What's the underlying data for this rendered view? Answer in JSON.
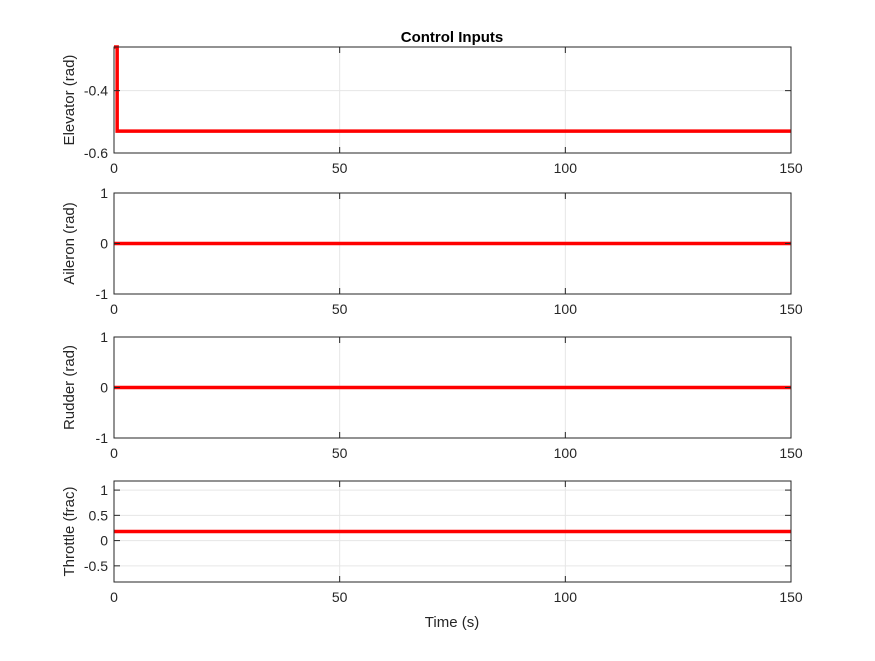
{
  "figure": {
    "title": "Control Inputs",
    "xlabel": "Time (s)"
  },
  "chart_data": [
    {
      "type": "line",
      "ylabel": "Elevator (rad)",
      "xlim": [
        0,
        150
      ],
      "ylim": [
        -0.6,
        -0.26
      ],
      "xticks": [
        0,
        50,
        100,
        150
      ],
      "yticks": [
        -0.6,
        -0.4
      ],
      "ytick_labels": [
        "-0.6",
        "-0.4"
      ],
      "grid": true,
      "series": [
        {
          "color": "#ff0000",
          "x": [
            0,
            0.7,
            0.7,
            150
          ],
          "y": [
            -0.26,
            -0.26,
            -0.53,
            -0.53
          ]
        }
      ]
    },
    {
      "type": "line",
      "ylabel": "Aileron (rad)",
      "xlim": [
        0,
        150
      ],
      "ylim": [
        -1,
        1
      ],
      "xticks": [
        0,
        50,
        100,
        150
      ],
      "yticks": [
        -1,
        0,
        1
      ],
      "ytick_labels": [
        "-1",
        "0",
        "1"
      ],
      "grid": true,
      "series": [
        {
          "color": "#ff0000",
          "x": [
            0,
            150
          ],
          "y": [
            0,
            0
          ]
        }
      ]
    },
    {
      "type": "line",
      "ylabel": "Rudder (rad)",
      "xlim": [
        0,
        150
      ],
      "ylim": [
        -1,
        1
      ],
      "xticks": [
        0,
        50,
        100,
        150
      ],
      "yticks": [
        -1,
        0,
        1
      ],
      "ytick_labels": [
        "-1",
        "0",
        "1"
      ],
      "grid": true,
      "series": [
        {
          "color": "#ff0000",
          "x": [
            0,
            150
          ],
          "y": [
            0,
            0
          ]
        }
      ]
    },
    {
      "type": "line",
      "ylabel": "Throttle (frac)",
      "xlim": [
        0,
        150
      ],
      "ylim": [
        -0.82,
        1.18
      ],
      "xticks": [
        0,
        50,
        100,
        150
      ],
      "yticks": [
        -0.5,
        0,
        0.5,
        1
      ],
      "ytick_labels": [
        "-0.5",
        "0",
        "0.5",
        "1"
      ],
      "grid": true,
      "series": [
        {
          "color": "#ff0000",
          "x": [
            0,
            150
          ],
          "y": [
            0.18,
            0.18
          ]
        }
      ]
    }
  ]
}
